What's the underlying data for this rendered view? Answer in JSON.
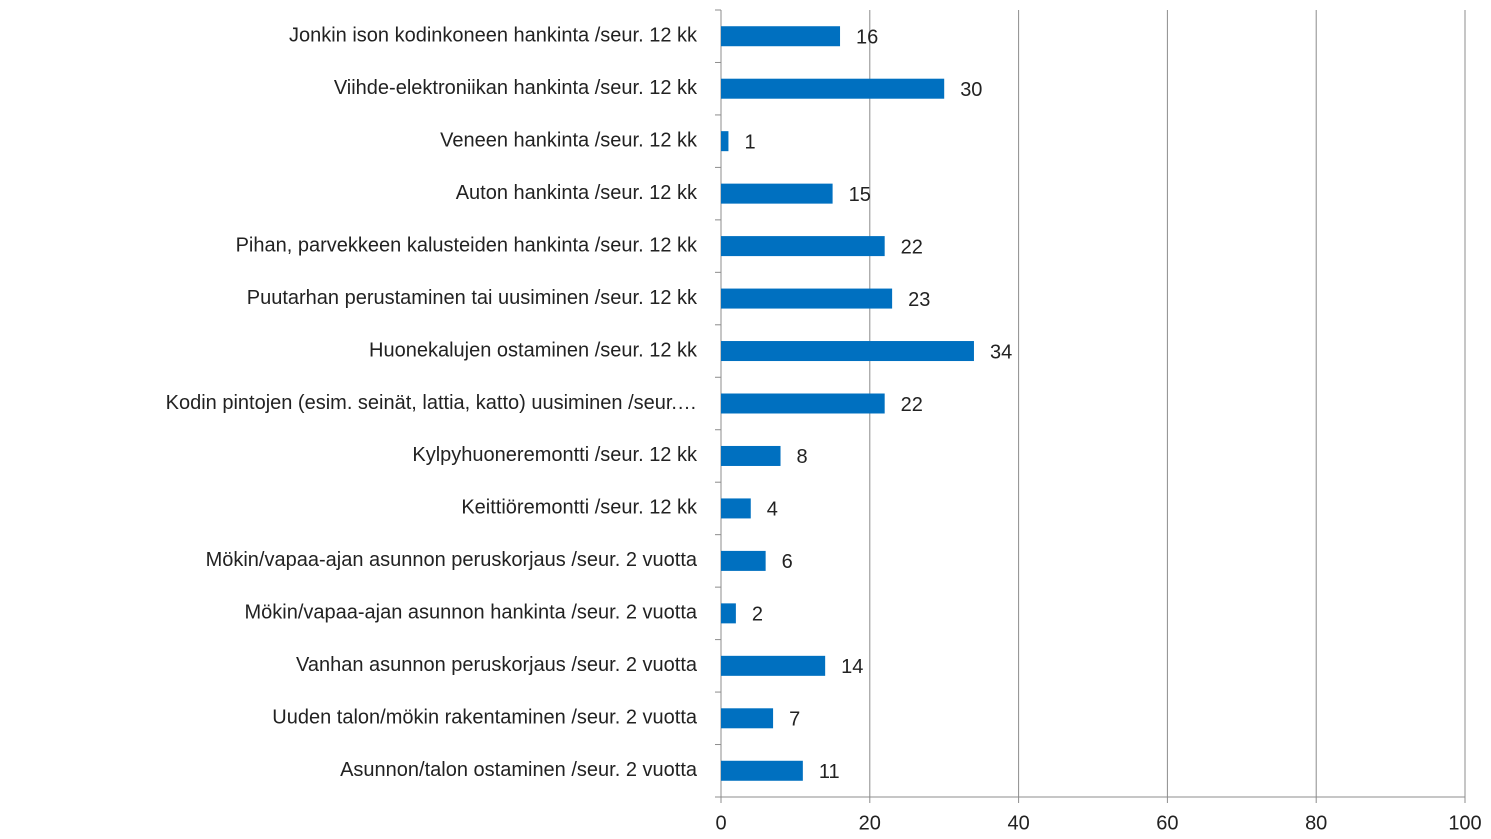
{
  "chart_data": {
    "type": "bar",
    "orientation": "horizontal",
    "categories": [
      "Jonkin ison kodinkoneen hankinta /seur. 12 kk",
      "Viihde-elektroniikan hankinta /seur. 12 kk",
      "Veneen hankinta /seur. 12 kk",
      "Auton hankinta /seur. 12 kk",
      "Pihan, parvekkeen kalusteiden hankinta /seur. 12 kk",
      "Puutarhan perustaminen tai uusiminen /seur. 12 kk",
      "Huonekalujen ostaminen /seur. 12 kk",
      "Kodin pintojen (esim. seinät, lattia, katto) uusiminen /seur.…",
      "Kylpyhuoneremontti /seur. 12 kk",
      "Keittiöremontti /seur. 12 kk",
      "Mökin/vapaa-ajan asunnon peruskorjaus /seur. 2 vuotta",
      "Mökin/vapaa-ajan asunnon hankinta /seur. 2 vuotta",
      "Vanhan asunnon peruskorjaus /seur. 2 vuotta",
      "Uuden talon/mökin rakentaminen /seur. 2 vuotta",
      "Asunnon/talon ostaminen /seur. 2 vuotta"
    ],
    "values": [
      16,
      30,
      1,
      15,
      22,
      23,
      34,
      22,
      8,
      4,
      6,
      2,
      14,
      7,
      11
    ],
    "color": "#0070c0",
    "xlim": [
      0,
      100
    ],
    "xticks": [
      0,
      20,
      40,
      60,
      80,
      100
    ],
    "grid": true
  }
}
